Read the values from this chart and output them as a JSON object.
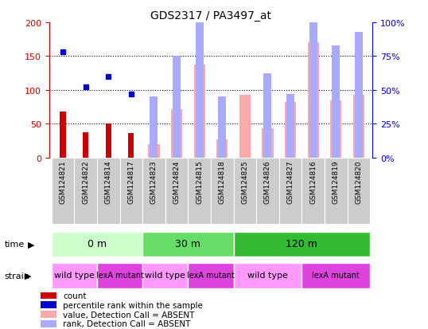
{
  "title": "GDS2317 / PA3497_at",
  "samples": [
    "GSM124821",
    "GSM124822",
    "GSM124814",
    "GSM124817",
    "GSM124823",
    "GSM124824",
    "GSM124815",
    "GSM124818",
    "GSM124825",
    "GSM124826",
    "GSM124827",
    "GSM124816",
    "GSM124819",
    "GSM124820"
  ],
  "count": [
    68,
    37,
    50,
    36,
    null,
    null,
    null,
    null,
    null,
    null,
    null,
    null,
    null,
    null
  ],
  "percentile": [
    78,
    52,
    60,
    47,
    null,
    null,
    null,
    null,
    null,
    null,
    null,
    null,
    null,
    null
  ],
  "value_absent": [
    null,
    null,
    null,
    null,
    20,
    72,
    138,
    27,
    93,
    43,
    82,
    170,
    85,
    93
  ],
  "rank_absent": [
    null,
    null,
    null,
    null,
    45,
    75,
    110,
    45,
    null,
    62,
    47,
    107,
    83,
    93
  ],
  "ylim": [
    0,
    200
  ],
  "yticks": [
    0,
    50,
    100,
    150,
    200
  ],
  "y2lim": [
    0,
    100
  ],
  "y2ticks": [
    0,
    25,
    50,
    75,
    100
  ],
  "time_groups": [
    {
      "label": "0 m",
      "start": 0,
      "end": 4,
      "color": "#ccffcc"
    },
    {
      "label": "30 m",
      "start": 4,
      "end": 8,
      "color": "#66dd66"
    },
    {
      "label": "120 m",
      "start": 8,
      "end": 14,
      "color": "#33bb33"
    }
  ],
  "strain_groups": [
    {
      "label": "wild type",
      "start": 0,
      "end": 2,
      "color": "#ff99ff"
    },
    {
      "label": "lexA mutant",
      "start": 2,
      "end": 4,
      "color": "#dd44dd"
    },
    {
      "label": "wild type",
      "start": 4,
      "end": 6,
      "color": "#ff99ff"
    },
    {
      "label": "lexA mutant",
      "start": 6,
      "end": 8,
      "color": "#dd44dd"
    },
    {
      "label": "wild type",
      "start": 8,
      "end": 11,
      "color": "#ff99ff"
    },
    {
      "label": "lexA mutant",
      "start": 11,
      "end": 14,
      "color": "#dd44dd"
    }
  ],
  "count_color": "#cc0000",
  "percentile_color": "#0000cc",
  "value_absent_color": "#ffaaaa",
  "rank_absent_color": "#aaaaff",
  "sample_bg": "#cccccc",
  "bg_color": "#ffffff",
  "tick_color_left": "#cc0000",
  "tick_color_right": "#0000cc"
}
